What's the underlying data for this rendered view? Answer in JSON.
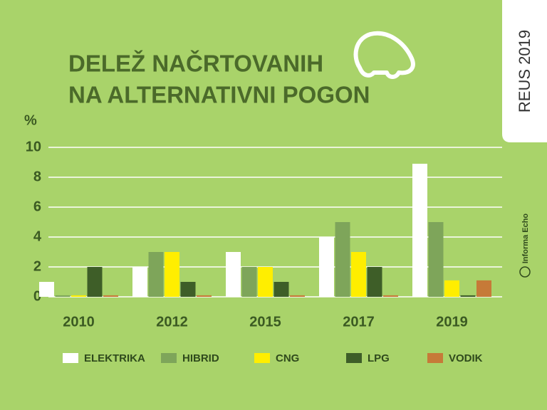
{
  "chart_data": {
    "type": "bar",
    "title": [
      "DELEŽ NAČRTOVANIH",
      "NA ALTERNATIVNI POGON"
    ],
    "y_label": "%",
    "categories": [
      "2010",
      "2012",
      "2015",
      "2017",
      "2019"
    ],
    "series": [
      {
        "name": "ELEKTRIKA",
        "color": "#ffffff",
        "values": [
          1,
          2,
          3,
          4,
          8.9
        ]
      },
      {
        "name": "HIBRID",
        "color": "#7ea55a",
        "values": [
          0.1,
          3,
          2,
          5,
          5
        ]
      },
      {
        "name": "CNG",
        "color": "#ffee00",
        "values": [
          0.1,
          3,
          2,
          3,
          1.1
        ]
      },
      {
        "name": "LPG",
        "color": "#3e5e28",
        "values": [
          2,
          1,
          1,
          2,
          0.1
        ]
      },
      {
        "name": "VODIK",
        "color": "#c67a38",
        "values": [
          0.1,
          0.1,
          0.1,
          0.1,
          1.1
        ]
      }
    ],
    "ylim": [
      0,
      10
    ],
    "yticks": [
      0,
      2,
      4,
      6,
      8,
      10
    ],
    "grid": true
  },
  "badge": "REUS 2019",
  "brand": "Informa Echo"
}
